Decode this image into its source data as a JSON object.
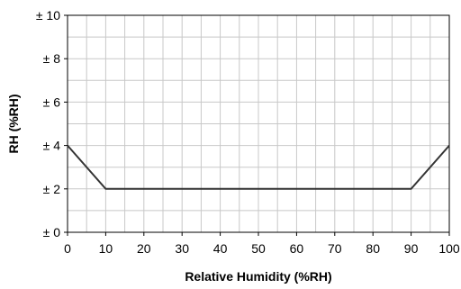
{
  "chart_data": {
    "type": "line",
    "xlabel": "Relative Humidity (%RH)",
    "ylabel": "RH (%RH)",
    "xlim": [
      0,
      100
    ],
    "ylim": [
      0,
      10
    ],
    "x_ticks": [
      "0",
      "10",
      "20",
      "30",
      "40",
      "50",
      "60",
      "70",
      "80",
      "90",
      "100"
    ],
    "y_ticks": [
      "± 0",
      "± 2",
      "± 4",
      "± 6",
      "± 8",
      "± 10"
    ],
    "grid": true,
    "grid_minor_x_step": 5,
    "grid_minor_y_step": 1,
    "series": [
      {
        "color": "#333333",
        "x": [
          0,
          10,
          90,
          100
        ],
        "y": [
          4,
          2,
          2,
          4
        ]
      }
    ]
  }
}
